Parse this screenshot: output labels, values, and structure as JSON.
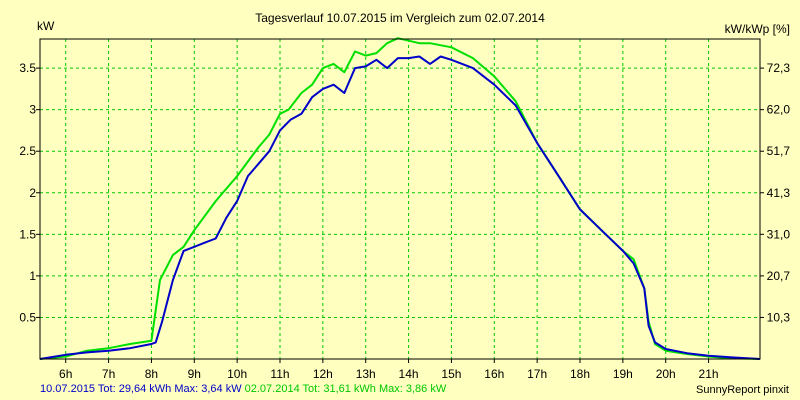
{
  "chart_data": {
    "type": "line",
    "title": "Tagesverlauf 10.07.2015 im Vergleich zum 02.07.2014",
    "ylabel_left": "kW",
    "ylabel_right": "kW/kWp [%]",
    "xlim": [
      5.4,
      22.2
    ],
    "ylim": [
      0,
      3.85
    ],
    "grid": true,
    "x_ticks": [
      {
        "v": 6,
        "label": "6h"
      },
      {
        "v": 7,
        "label": "7h"
      },
      {
        "v": 8,
        "label": "8h"
      },
      {
        "v": 9,
        "label": "9h"
      },
      {
        "v": 10,
        "label": "10h"
      },
      {
        "v": 11,
        "label": "11h"
      },
      {
        "v": 12,
        "label": "12h"
      },
      {
        "v": 13,
        "label": "13h"
      },
      {
        "v": 14,
        "label": "14h"
      },
      {
        "v": 15,
        "label": "15h"
      },
      {
        "v": 16,
        "label": "16h"
      },
      {
        "v": 17,
        "label": "17h"
      },
      {
        "v": 18,
        "label": "18h"
      },
      {
        "v": 19,
        "label": "19h"
      },
      {
        "v": 20,
        "label": "20h"
      },
      {
        "v": 21,
        "label": "21h"
      }
    ],
    "y_ticks_left": [
      {
        "v": 0.5,
        "label": "0.5"
      },
      {
        "v": 1,
        "label": "1"
      },
      {
        "v": 1.5,
        "label": "1.5"
      },
      {
        "v": 2,
        "label": "2"
      },
      {
        "v": 2.5,
        "label": "2.5"
      },
      {
        "v": 3,
        "label": "3"
      },
      {
        "v": 3.5,
        "label": "3.5"
      }
    ],
    "y_ticks_right": [
      {
        "v": 0.5,
        "label": "10,3"
      },
      {
        "v": 1,
        "label": "20,7"
      },
      {
        "v": 1.5,
        "label": "31,0"
      },
      {
        "v": 2,
        "label": "41,3"
      },
      {
        "v": 2.5,
        "label": "51,7"
      },
      {
        "v": 3,
        "label": "62,0"
      },
      {
        "v": 3.5,
        "label": "72,3"
      }
    ],
    "series": [
      {
        "name": "10.07.2015 Tot: 29,64 kWh Max: 3,64 kW",
        "color": "#0000c8",
        "points": [
          [
            5.4,
            0
          ],
          [
            6,
            0.05
          ],
          [
            6.5,
            0.08
          ],
          [
            7,
            0.1
          ],
          [
            7.5,
            0.13
          ],
          [
            8,
            0.18
          ],
          [
            8.1,
            0.2
          ],
          [
            8.25,
            0.45
          ],
          [
            8.5,
            0.95
          ],
          [
            8.75,
            1.3
          ],
          [
            9,
            1.35
          ],
          [
            9.25,
            1.4
          ],
          [
            9.5,
            1.45
          ],
          [
            9.75,
            1.7
          ],
          [
            10,
            1.9
          ],
          [
            10.25,
            2.2
          ],
          [
            10.5,
            2.35
          ],
          [
            10.75,
            2.5
          ],
          [
            11,
            2.75
          ],
          [
            11.25,
            2.88
          ],
          [
            11.5,
            2.95
          ],
          [
            11.75,
            3.15
          ],
          [
            12,
            3.25
          ],
          [
            12.25,
            3.3
          ],
          [
            12.5,
            3.2
          ],
          [
            12.75,
            3.5
          ],
          [
            13,
            3.52
          ],
          [
            13.25,
            3.6
          ],
          [
            13.5,
            3.5
          ],
          [
            13.75,
            3.62
          ],
          [
            14,
            3.62
          ],
          [
            14.25,
            3.64
          ],
          [
            14.5,
            3.55
          ],
          [
            14.75,
            3.64
          ],
          [
            15,
            3.6
          ],
          [
            15.5,
            3.5
          ],
          [
            16,
            3.3
          ],
          [
            16.5,
            3.05
          ],
          [
            17,
            2.6
          ],
          [
            17.5,
            2.2
          ],
          [
            18,
            1.8
          ],
          [
            18.5,
            1.55
          ],
          [
            19,
            1.3
          ],
          [
            19.25,
            1.15
          ],
          [
            19.5,
            0.85
          ],
          [
            19.6,
            0.4
          ],
          [
            19.75,
            0.2
          ],
          [
            20,
            0.12
          ],
          [
            20.5,
            0.07
          ],
          [
            21,
            0.04
          ],
          [
            21.5,
            0.02
          ],
          [
            22.2,
            0
          ]
        ]
      },
      {
        "name": "02.07.2014 Tot: 31,61 kWh Max: 3,86 kW",
        "color": "#00e000",
        "points": [
          [
            5.4,
            0
          ],
          [
            6,
            0.03
          ],
          [
            6.5,
            0.1
          ],
          [
            7,
            0.13
          ],
          [
            7.5,
            0.18
          ],
          [
            8,
            0.22
          ],
          [
            8.2,
            0.95
          ],
          [
            8.5,
            1.25
          ],
          [
            8.75,
            1.35
          ],
          [
            9,
            1.55
          ],
          [
            9.5,
            1.9
          ],
          [
            10,
            2.2
          ],
          [
            10.5,
            2.55
          ],
          [
            10.75,
            2.7
          ],
          [
            11,
            2.95
          ],
          [
            11.2,
            3.0
          ],
          [
            11.5,
            3.2
          ],
          [
            11.75,
            3.3
          ],
          [
            12,
            3.5
          ],
          [
            12.25,
            3.55
          ],
          [
            12.5,
            3.45
          ],
          [
            12.75,
            3.7
          ],
          [
            13,
            3.65
          ],
          [
            13.25,
            3.68
          ],
          [
            13.5,
            3.8
          ],
          [
            13.75,
            3.86
          ],
          [
            14,
            3.83
          ],
          [
            14.25,
            3.8
          ],
          [
            14.5,
            3.8
          ],
          [
            15,
            3.75
          ],
          [
            15.5,
            3.62
          ],
          [
            16,
            3.4
          ],
          [
            16.5,
            3.1
          ],
          [
            17,
            2.6
          ],
          [
            17.5,
            2.2
          ],
          [
            18,
            1.8
          ],
          [
            18.5,
            1.55
          ],
          [
            19,
            1.3
          ],
          [
            19.25,
            1.2
          ],
          [
            19.5,
            0.85
          ],
          [
            19.6,
            0.45
          ],
          [
            19.75,
            0.18
          ],
          [
            20,
            0.1
          ],
          [
            20.5,
            0.06
          ],
          [
            21,
            0.03
          ],
          [
            21.5,
            0.01
          ],
          [
            22.2,
            0
          ]
        ]
      }
    ]
  },
  "footer": {
    "series1_text": "10.07.2015 Tot: 29,64 kWh Max: 3,64 kW",
    "series2_text": "02.07.2014 Tot: 31,61 kWh Max: 3,86 kW",
    "credit": "SunnyReport pinxit"
  }
}
